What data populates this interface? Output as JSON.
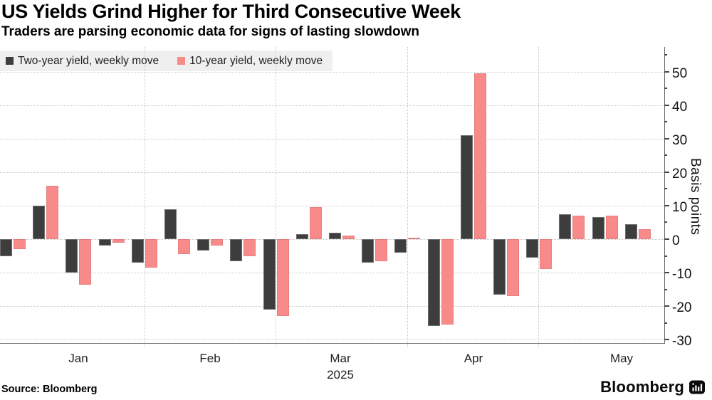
{
  "header": {
    "title": "US Yields Grind Higher for Third Consecutive Week",
    "subtitle": "Traders are parsing economic data for signs of lasting slowdown"
  },
  "legend": {
    "items": [
      {
        "label": "Two-year yield, weekly move",
        "color": "#3d3d3d"
      },
      {
        "label": "10-year yield, weekly move",
        "color": "#f98a8a"
      }
    ]
  },
  "chart_data": {
    "type": "bar",
    "title": "US Yields Grind Higher for Third Consecutive Week",
    "subtitle": "Traders are parsing economic data for signs of lasting slowdown",
    "ylabel": "Basis points",
    "ylim": [
      -32,
      55
    ],
    "y_major_ticks": [
      50,
      40,
      30,
      20,
      10,
      0,
      -10,
      -20,
      -30
    ],
    "y_minor_ticks": [
      55,
      45,
      35,
      25,
      15,
      5,
      -5,
      -15,
      -25
    ],
    "grid": "dotted horizontal at 10bp steps; dotted vertical at month boundaries",
    "legend_position": "top-left",
    "x_axis": {
      "unit": "weekly bars, Jan-May 2025",
      "month_labels": [
        "Jan",
        "Feb",
        "Mar",
        "Apr",
        "May"
      ],
      "year": "2025"
    },
    "series": [
      {
        "name": "Two-year yield, weekly move",
        "color": "#3d3d3d",
        "values": [
          -5,
          10,
          -10,
          -2,
          -7,
          9,
          -3.5,
          -6.5,
          -21,
          1.5,
          2,
          -7,
          -4,
          -26,
          31,
          -16.5,
          -5.5,
          7.5,
          6.5,
          4.5
        ]
      },
      {
        "name": "10-year yield, weekly move",
        "color": "#f98a8a",
        "values": [
          -3,
          16,
          -13.5,
          -1,
          -8.5,
          -4.5,
          -2,
          -5,
          -23,
          9.5,
          1,
          -6.5,
          0.5,
          -25.5,
          49.5,
          -17,
          -9,
          7,
          7,
          3
        ]
      }
    ]
  },
  "y_axis": {
    "tick_labels": [
      "50",
      "40",
      "30",
      "20",
      "10",
      "0",
      "-10",
      "-20",
      "-30"
    ],
    "axis_label": "Basis points"
  },
  "footer": {
    "source": "Source:  Bloomberg",
    "logo_text": "Bloomberg"
  },
  "colors": {
    "two_year_bar": "#3d3d3d",
    "ten_year_bar": "#f98a8a",
    "legend_background": "#efefef",
    "gridline": "#c9c9c9",
    "axis_line": "#666666",
    "background": "#ffffff"
  }
}
